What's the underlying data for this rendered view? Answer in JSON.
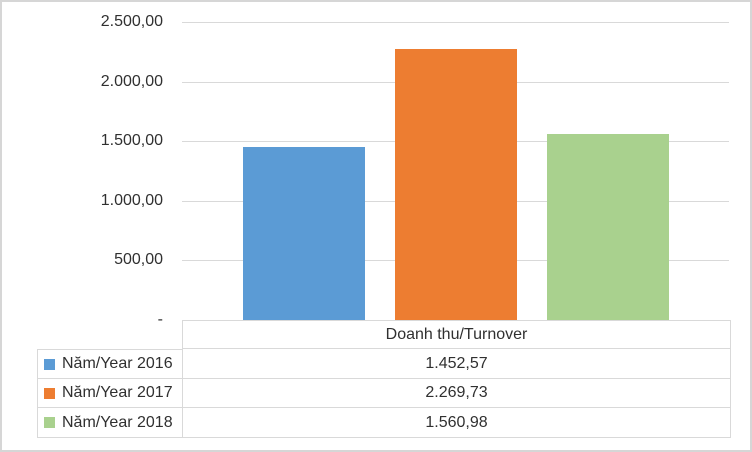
{
  "chart_data": {
    "type": "bar",
    "title": "",
    "xlabel": "",
    "ylabel": "",
    "categories": [
      "Năm/Year 2016",
      "Năm/Year 2017",
      "Năm/Year 2018"
    ],
    "values": [
      1452.57,
      2269.73,
      1560.98
    ],
    "value_labels": [
      "1.452,57",
      "2.269,73",
      "1.560,98"
    ],
    "series_colors": [
      "#5B9BD5",
      "#ED7D31",
      "#A9D18E"
    ],
    "ylim": [
      0,
      2500
    ],
    "ytick_values": [
      2500,
      2000,
      1500,
      1000,
      500,
      0
    ],
    "ytick_labels": [
      "2.500,00",
      "2.000,00",
      "1.500,00",
      "1.000,00",
      "500,00",
      "-"
    ],
    "grid": true,
    "legend_position": "data-table-left",
    "data_table": {
      "column_header": "Doanh thu/Turnover",
      "rows": [
        {
          "label": "Năm/Year 2016",
          "value": "1.452,57",
          "color": "#5B9BD5"
        },
        {
          "label": "Năm/Year 2017",
          "value": "2.269,73",
          "color": "#ED7D31"
        },
        {
          "label": "Năm/Year 2018",
          "value": "1.560,98",
          "color": "#A9D18E"
        }
      ]
    },
    "colors": {
      "gridline": "#d9d9d9",
      "table_border": "#d9d9d9",
      "text": "#303030",
      "background": "#ffffff",
      "frame_border": "#d6d6d6"
    }
  }
}
